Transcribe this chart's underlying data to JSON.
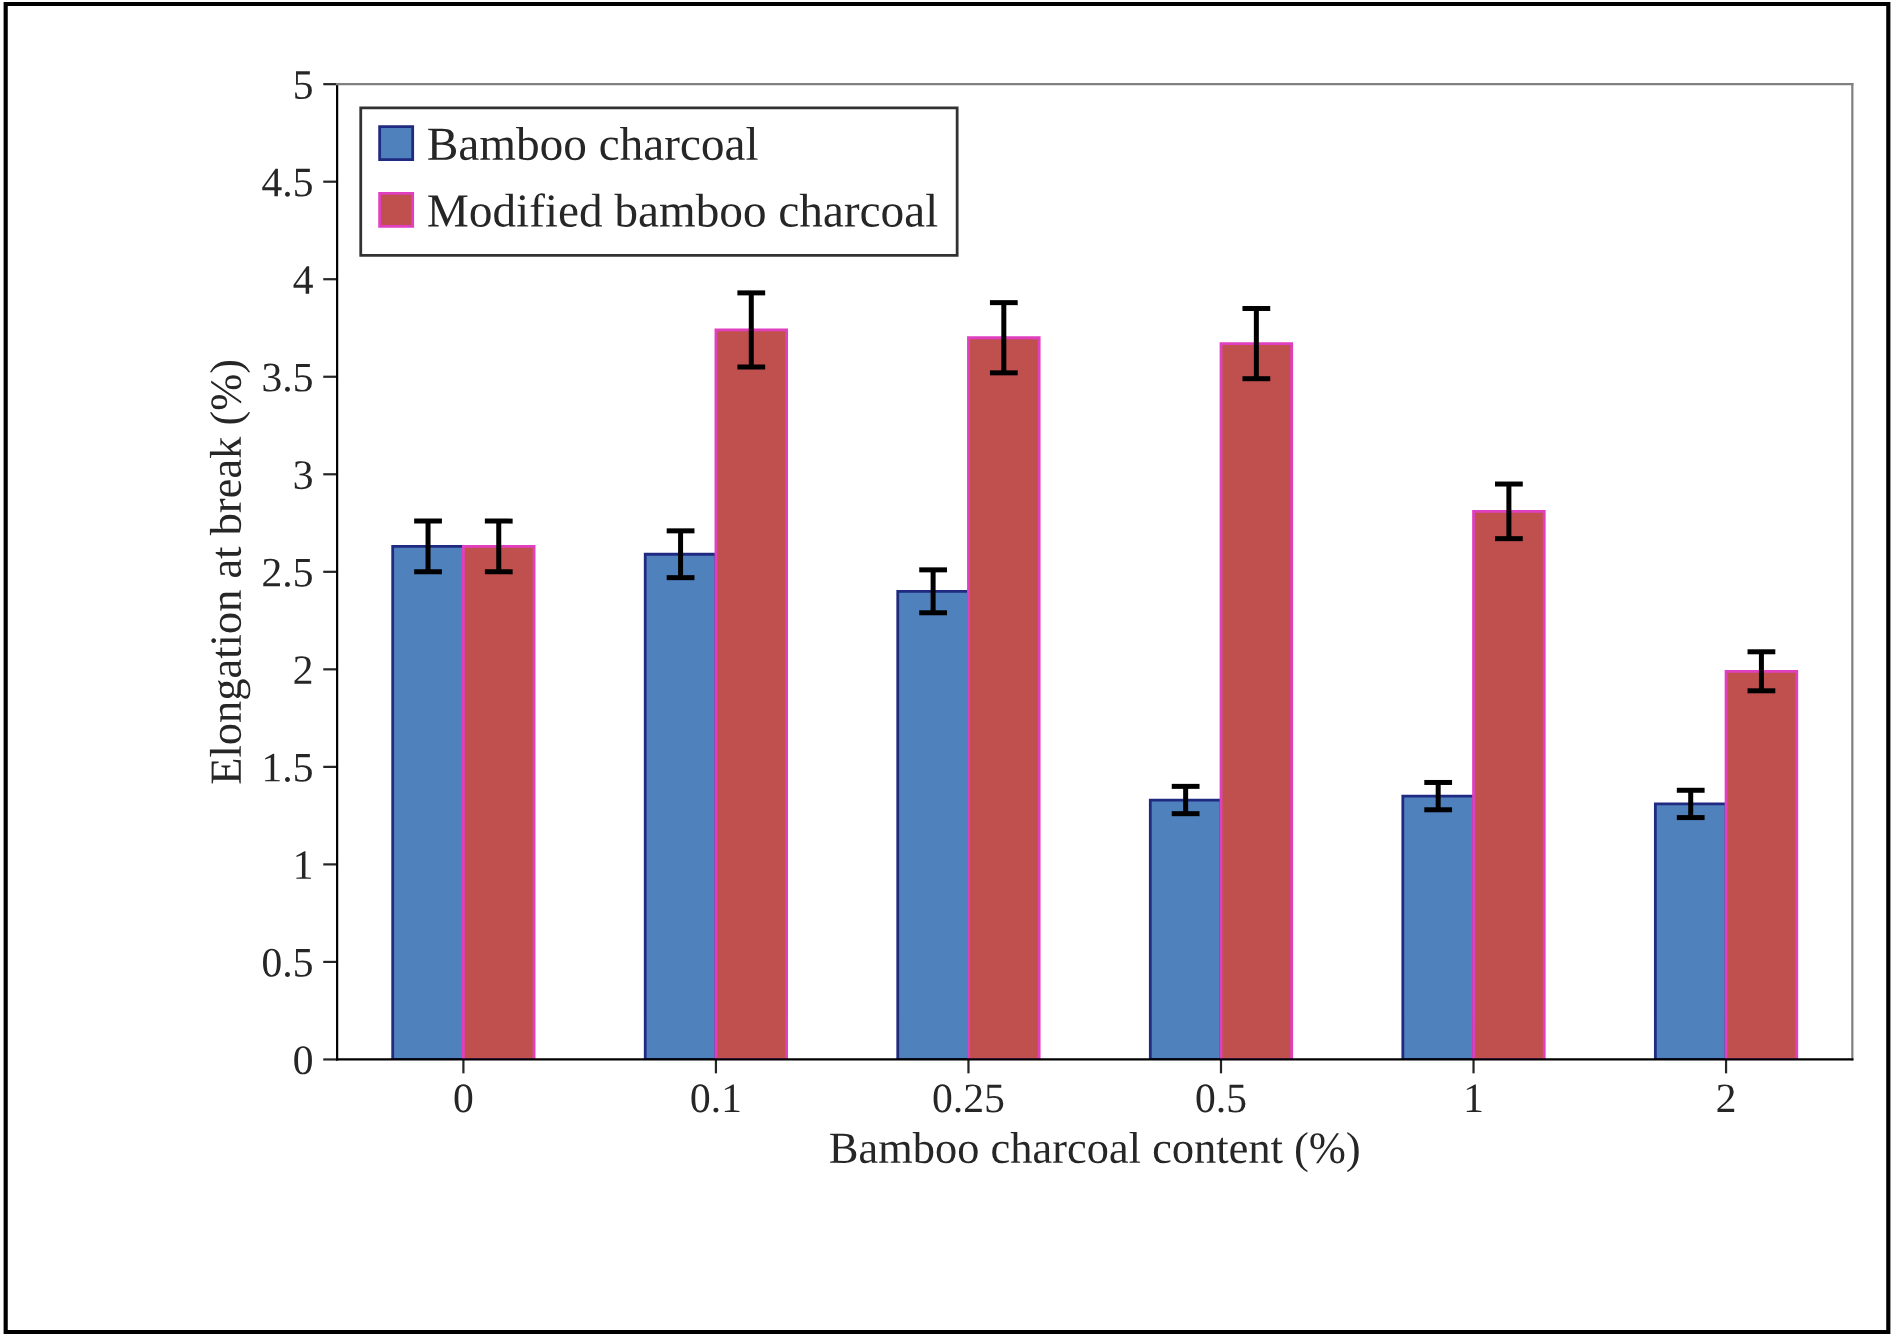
{
  "chart_data": {
    "type": "bar",
    "xlabel": "Bamboo charcoal content (%)",
    "ylabel": "Elongation at break (%)",
    "categories": [
      "0",
      "0.1",
      "0.25",
      "0.5",
      "1",
      "2"
    ],
    "series": [
      {
        "name": "Bamboo charcoal",
        "color": "#4f81bd",
        "values": [
          2.63,
          2.59,
          2.4,
          1.33,
          1.35,
          1.31
        ],
        "errors": [
          0.13,
          0.12,
          0.11,
          0.07,
          0.07,
          0.07
        ]
      },
      {
        "name": "Modified bamboo charcoal",
        "color": "#c0504d",
        "values": [
          2.63,
          3.74,
          3.7,
          3.67,
          2.81,
          1.99
        ],
        "errors": [
          0.13,
          0.19,
          0.18,
          0.18,
          0.14,
          0.1
        ]
      }
    ],
    "ylim": [
      0,
      5
    ],
    "yticks": [
      0,
      0.5,
      1,
      1.5,
      2,
      2.5,
      3,
      3.5,
      4,
      4.5,
      5
    ],
    "grid": false,
    "legend": "top left"
  }
}
